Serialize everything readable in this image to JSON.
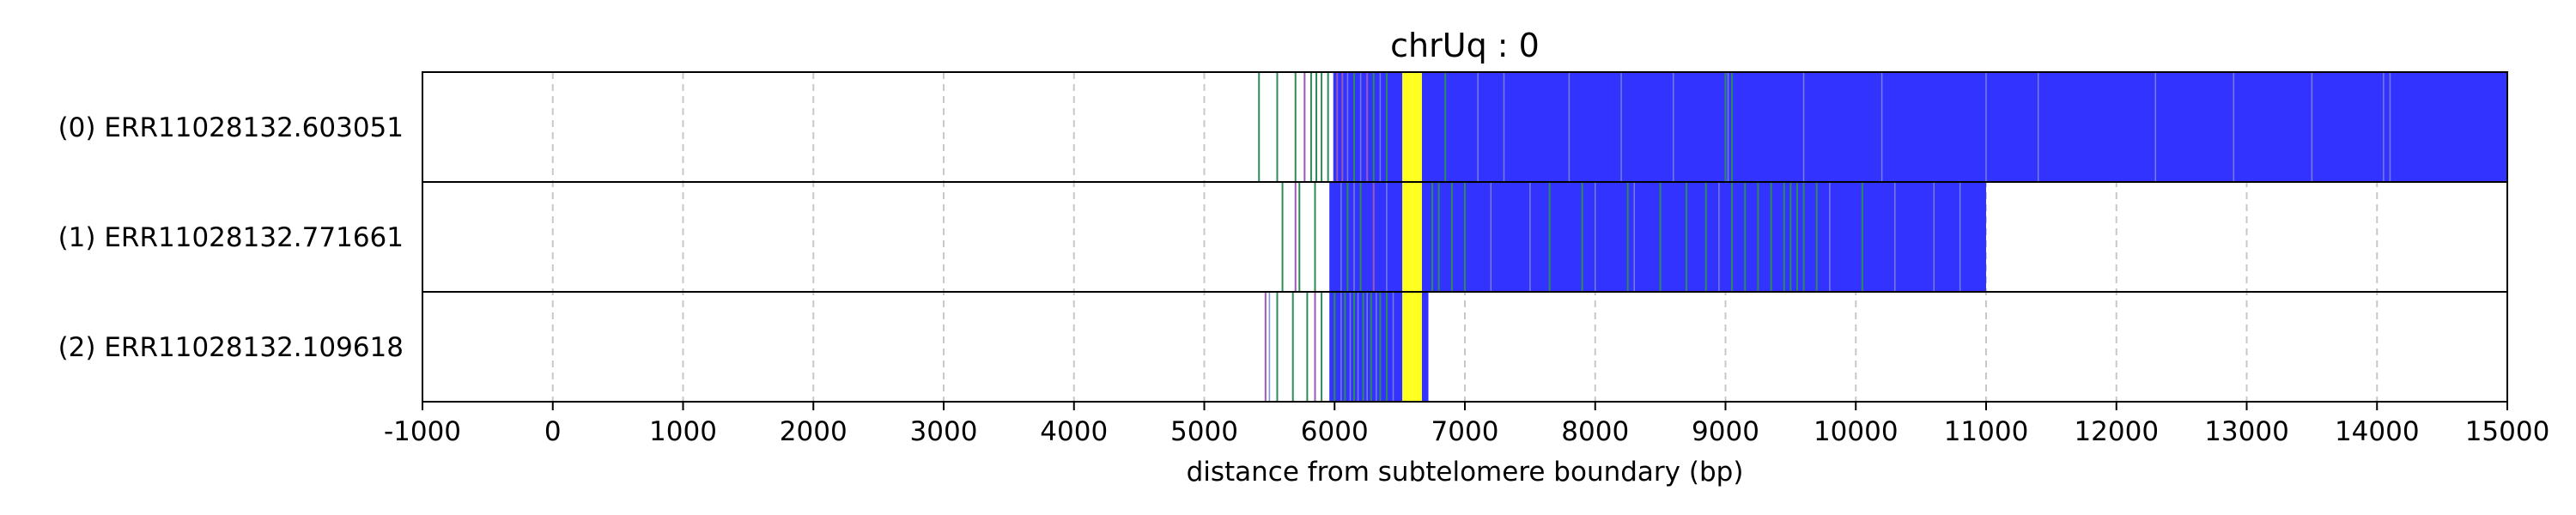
{
  "chart_data": {
    "type": "track-plot",
    "title": "chrUq : 0",
    "xlabel": "distance from subtelomere boundary (bp)",
    "xlim": [
      -1000,
      15000
    ],
    "x_ticks": [
      -1000,
      0,
      1000,
      2000,
      3000,
      4000,
      5000,
      6000,
      7000,
      8000,
      9000,
      10000,
      11000,
      12000,
      13000,
      14000,
      15000
    ],
    "grid": "vertical dashed at ticks",
    "colors": {
      "repeat_block": "#3333ff",
      "boundary": "#ffff22",
      "green_line": "#2e8b57",
      "purple_line": "#9b59b6",
      "light_line": "#9aa0ff"
    },
    "reads": [
      {
        "label": "(0) ERR11028132.603051",
        "blocks": [
          [
            5990,
            6520
          ],
          [
            6670,
            15000
          ]
        ],
        "boundary": [
          6520,
          6670
        ],
        "green_lines": [
          5420,
          5560,
          5700,
          5820,
          5860,
          5900,
          5950,
          6150,
          6300,
          6400,
          6850,
          9000,
          9050
        ],
        "purple_lines": [
          5770,
          6020,
          6060,
          6250
        ],
        "light_lines": [
          6100,
          6200,
          6350,
          7100,
          7300,
          7800,
          8200,
          8600,
          9020,
          9600,
          10200,
          11000,
          11400,
          12300,
          12900,
          13500,
          14050,
          14100
        ]
      },
      {
        "label": "(1) ERR11028132.771661",
        "blocks": [
          [
            5960,
            6520
          ],
          [
            6670,
            11000
          ]
        ],
        "boundary": [
          6520,
          6670
        ],
        "green_lines": [
          5600,
          5730,
          5850,
          6100,
          6200,
          6750,
          6800,
          6900,
          7000,
          7650,
          7900,
          8250,
          8500,
          8700,
          8850,
          9050,
          9150,
          9250,
          9350,
          9450,
          9500,
          9550,
          9600,
          9700,
          10050
        ],
        "purple_lines": [
          5700,
          6300
        ],
        "light_lines": [
          6050,
          6150,
          6400,
          7200,
          7500,
          8000,
          8300,
          8950,
          9800,
          10300,
          10600,
          10800
        ]
      },
      {
        "label": "(2) ERR11028132.109618",
        "blocks": [
          [
            5960,
            6520
          ],
          [
            6670,
            6720
          ]
        ],
        "boundary": [
          6520,
          6670
        ],
        "green_lines": [
          5560,
          5680,
          5790,
          5900,
          6000,
          6080,
          6150,
          6220,
          6280,
          6350,
          6400
        ],
        "purple_lines": [
          5470,
          5850
        ],
        "light_lines": [
          5500,
          6050,
          6120,
          6180,
          6250,
          6320,
          6450
        ]
      }
    ]
  }
}
